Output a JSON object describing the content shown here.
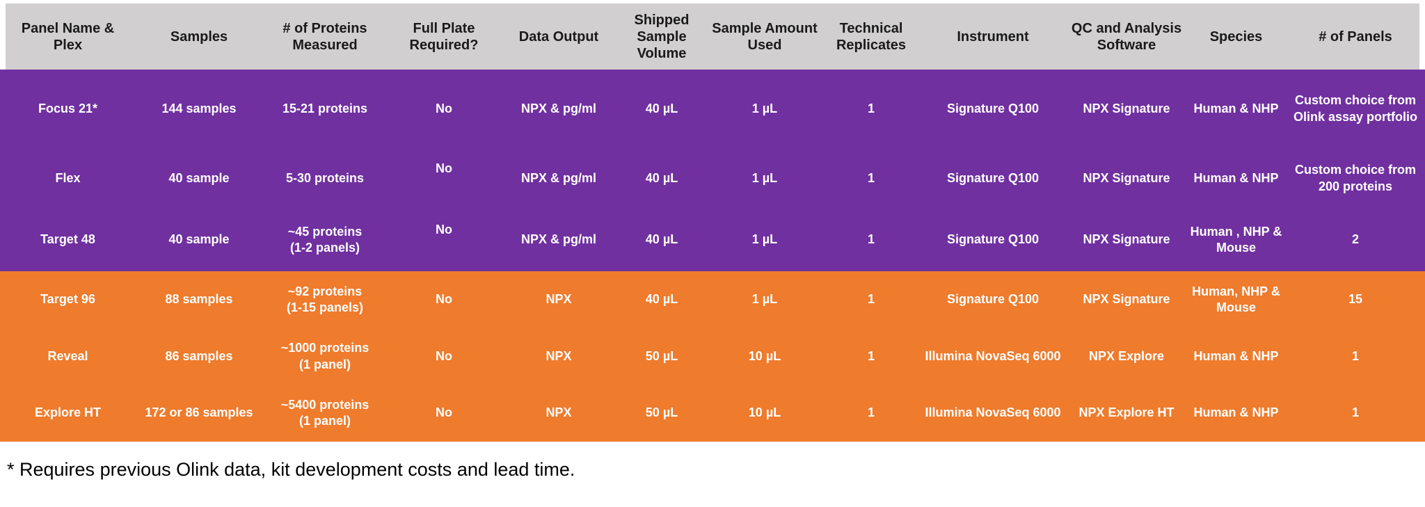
{
  "colors": {
    "header_bg": "#D1CFCF",
    "purple_section": "#7030A0",
    "orange_section": "#EF7B2C",
    "header_text": "#1A1A1A",
    "body_text": "#FFFFFF",
    "footnote_text": "#000000"
  },
  "table": {
    "columns": [
      "Panel Name &\nPlex",
      "Samples",
      "# of Proteins\nMeasured",
      "Full Plate\nRequired?",
      "Data Output",
      "Shipped\nSample\nVolume",
      "Sample Amount\nUsed",
      "Technical\nReplicates",
      "Instrument",
      "QC and Analysis\nSoftware",
      "Species",
      "# of Panels"
    ],
    "rows": [
      {
        "id": "focus-21",
        "section": "purple",
        "cells": [
          "Focus 21*",
          "144 samples",
          "15-21 proteins",
          "No",
          "NPX & pg/ml",
          "40 µL",
          "1 µL",
          "1",
          "Signature Q100",
          "NPX Signature",
          "Human & NHP",
          "Custom choice from\nOlink assay portfolio"
        ]
      },
      {
        "id": "flex",
        "section": "purple",
        "cells": [
          "Flex",
          "40 sample",
          "5-30 proteins",
          "No",
          "NPX & pg/ml",
          "40 µL",
          "1 µL",
          "1",
          "Signature Q100",
          "NPX Signature",
          "Human & NHP",
          "Custom choice from\n200 proteins"
        ]
      },
      {
        "id": "target-48",
        "section": "purple",
        "cells": [
          "Target 48",
          "40 sample",
          "~45 proteins\n(1-2 panels)",
          "No",
          "NPX & pg/ml",
          "40 µL",
          "1 µL",
          "1",
          "Signature Q100",
          "NPX Signature",
          "Human , NHP &\nMouse",
          "2"
        ]
      },
      {
        "id": "target-96",
        "section": "orange",
        "cells": [
          "Target 96",
          "88 samples",
          "~92 proteins\n(1-15 panels)",
          "No",
          "NPX",
          "40 µL",
          "1 µL",
          "1",
          "Signature Q100",
          "NPX Signature",
          "Human, NHP &\nMouse",
          "15"
        ]
      },
      {
        "id": "reveal",
        "section": "orange",
        "cells": [
          "Reveal",
          "86 samples",
          "~1000 proteins\n(1 panel)",
          "No",
          "NPX",
          "50 µL",
          "10 µL",
          "1",
          "Illumina NovaSeq 6000",
          "NPX Explore",
          "Human & NHP",
          "1"
        ]
      },
      {
        "id": "explore-ht",
        "section": "orange",
        "cells": [
          "Explore HT",
          "172 or 86 samples",
          "~5400 proteins\n(1 panel)",
          "No",
          "NPX",
          "50 µL",
          "10 µL",
          "1",
          "Illumina NovaSeq 6000",
          "NPX Explore HT",
          "Human & NHP",
          "1"
        ]
      }
    ]
  },
  "footnote": "* Requires previous Olink data, kit development costs and lead time."
}
